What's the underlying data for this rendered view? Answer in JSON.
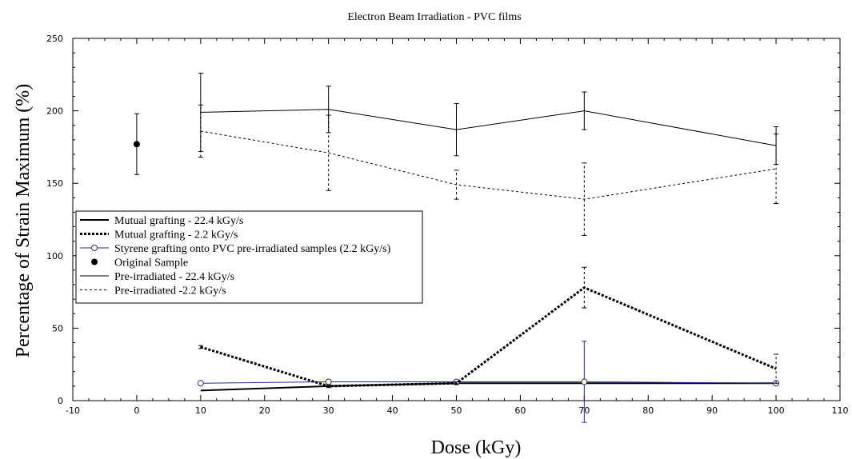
{
  "chart_data": {
    "type": "line",
    "title": "Electron Beam Irradiation - PVC films",
    "xlabel": "Dose (kGy)",
    "ylabel": "Percentage of Strain Maximum (%)",
    "xlim": [
      -10,
      110
    ],
    "ylim": [
      0,
      250
    ],
    "xticks": [
      -10,
      0,
      10,
      20,
      30,
      40,
      50,
      60,
      70,
      80,
      90,
      100,
      110
    ],
    "yticks": [
      0,
      50,
      100,
      150,
      200,
      250
    ],
    "grid": false,
    "legend_position": "center-left",
    "series": [
      {
        "name": "Mutual grafting - 22.4 kGy/s",
        "style": "solid-thick",
        "color": "#000000",
        "x": [
          10,
          30,
          50,
          70,
          100
        ],
        "y": [
          7,
          10,
          12,
          12,
          12
        ],
        "err": [
          0,
          0,
          0,
          0,
          0
        ]
      },
      {
        "name": "Mutual grafting - 2.2 kGy/s",
        "style": "dotted-thick",
        "color": "#000000",
        "x": [
          10,
          30,
          50,
          70,
          100
        ],
        "y": [
          37,
          10,
          12,
          78,
          22
        ],
        "err": [
          1,
          1,
          1,
          14,
          10
        ]
      },
      {
        "name": "Styrene grafting onto PVC pre-irradiated samples (2.2 kGy/s)",
        "style": "solid-marker-circle",
        "color": "#2a2a8c",
        "x": [
          10,
          30,
          50,
          70,
          100
        ],
        "y": [
          12,
          13,
          13,
          13,
          12
        ],
        "err": [
          0,
          0,
          0,
          28,
          0
        ]
      },
      {
        "name": "Original Sample",
        "style": "marker-filled-circle",
        "color": "#000000",
        "x": [
          0
        ],
        "y": [
          177
        ],
        "err": [
          21
        ]
      },
      {
        "name": "Pre-irradiated - 22.4 kGy/s",
        "style": "solid-thin",
        "color": "#000000",
        "x": [
          10,
          30,
          50,
          70,
          100
        ],
        "y": [
          199,
          201,
          187,
          200,
          176
        ],
        "err": [
          27,
          16,
          18,
          13,
          13
        ]
      },
      {
        "name": "Pre-irradiated -2.2 kGy/s",
        "style": "dashed-thin",
        "color": "#000000",
        "x": [
          10,
          30,
          50,
          70,
          100
        ],
        "y": [
          186,
          171,
          149,
          139,
          160
        ],
        "err": [
          18,
          26,
          10,
          25,
          24
        ]
      }
    ]
  }
}
